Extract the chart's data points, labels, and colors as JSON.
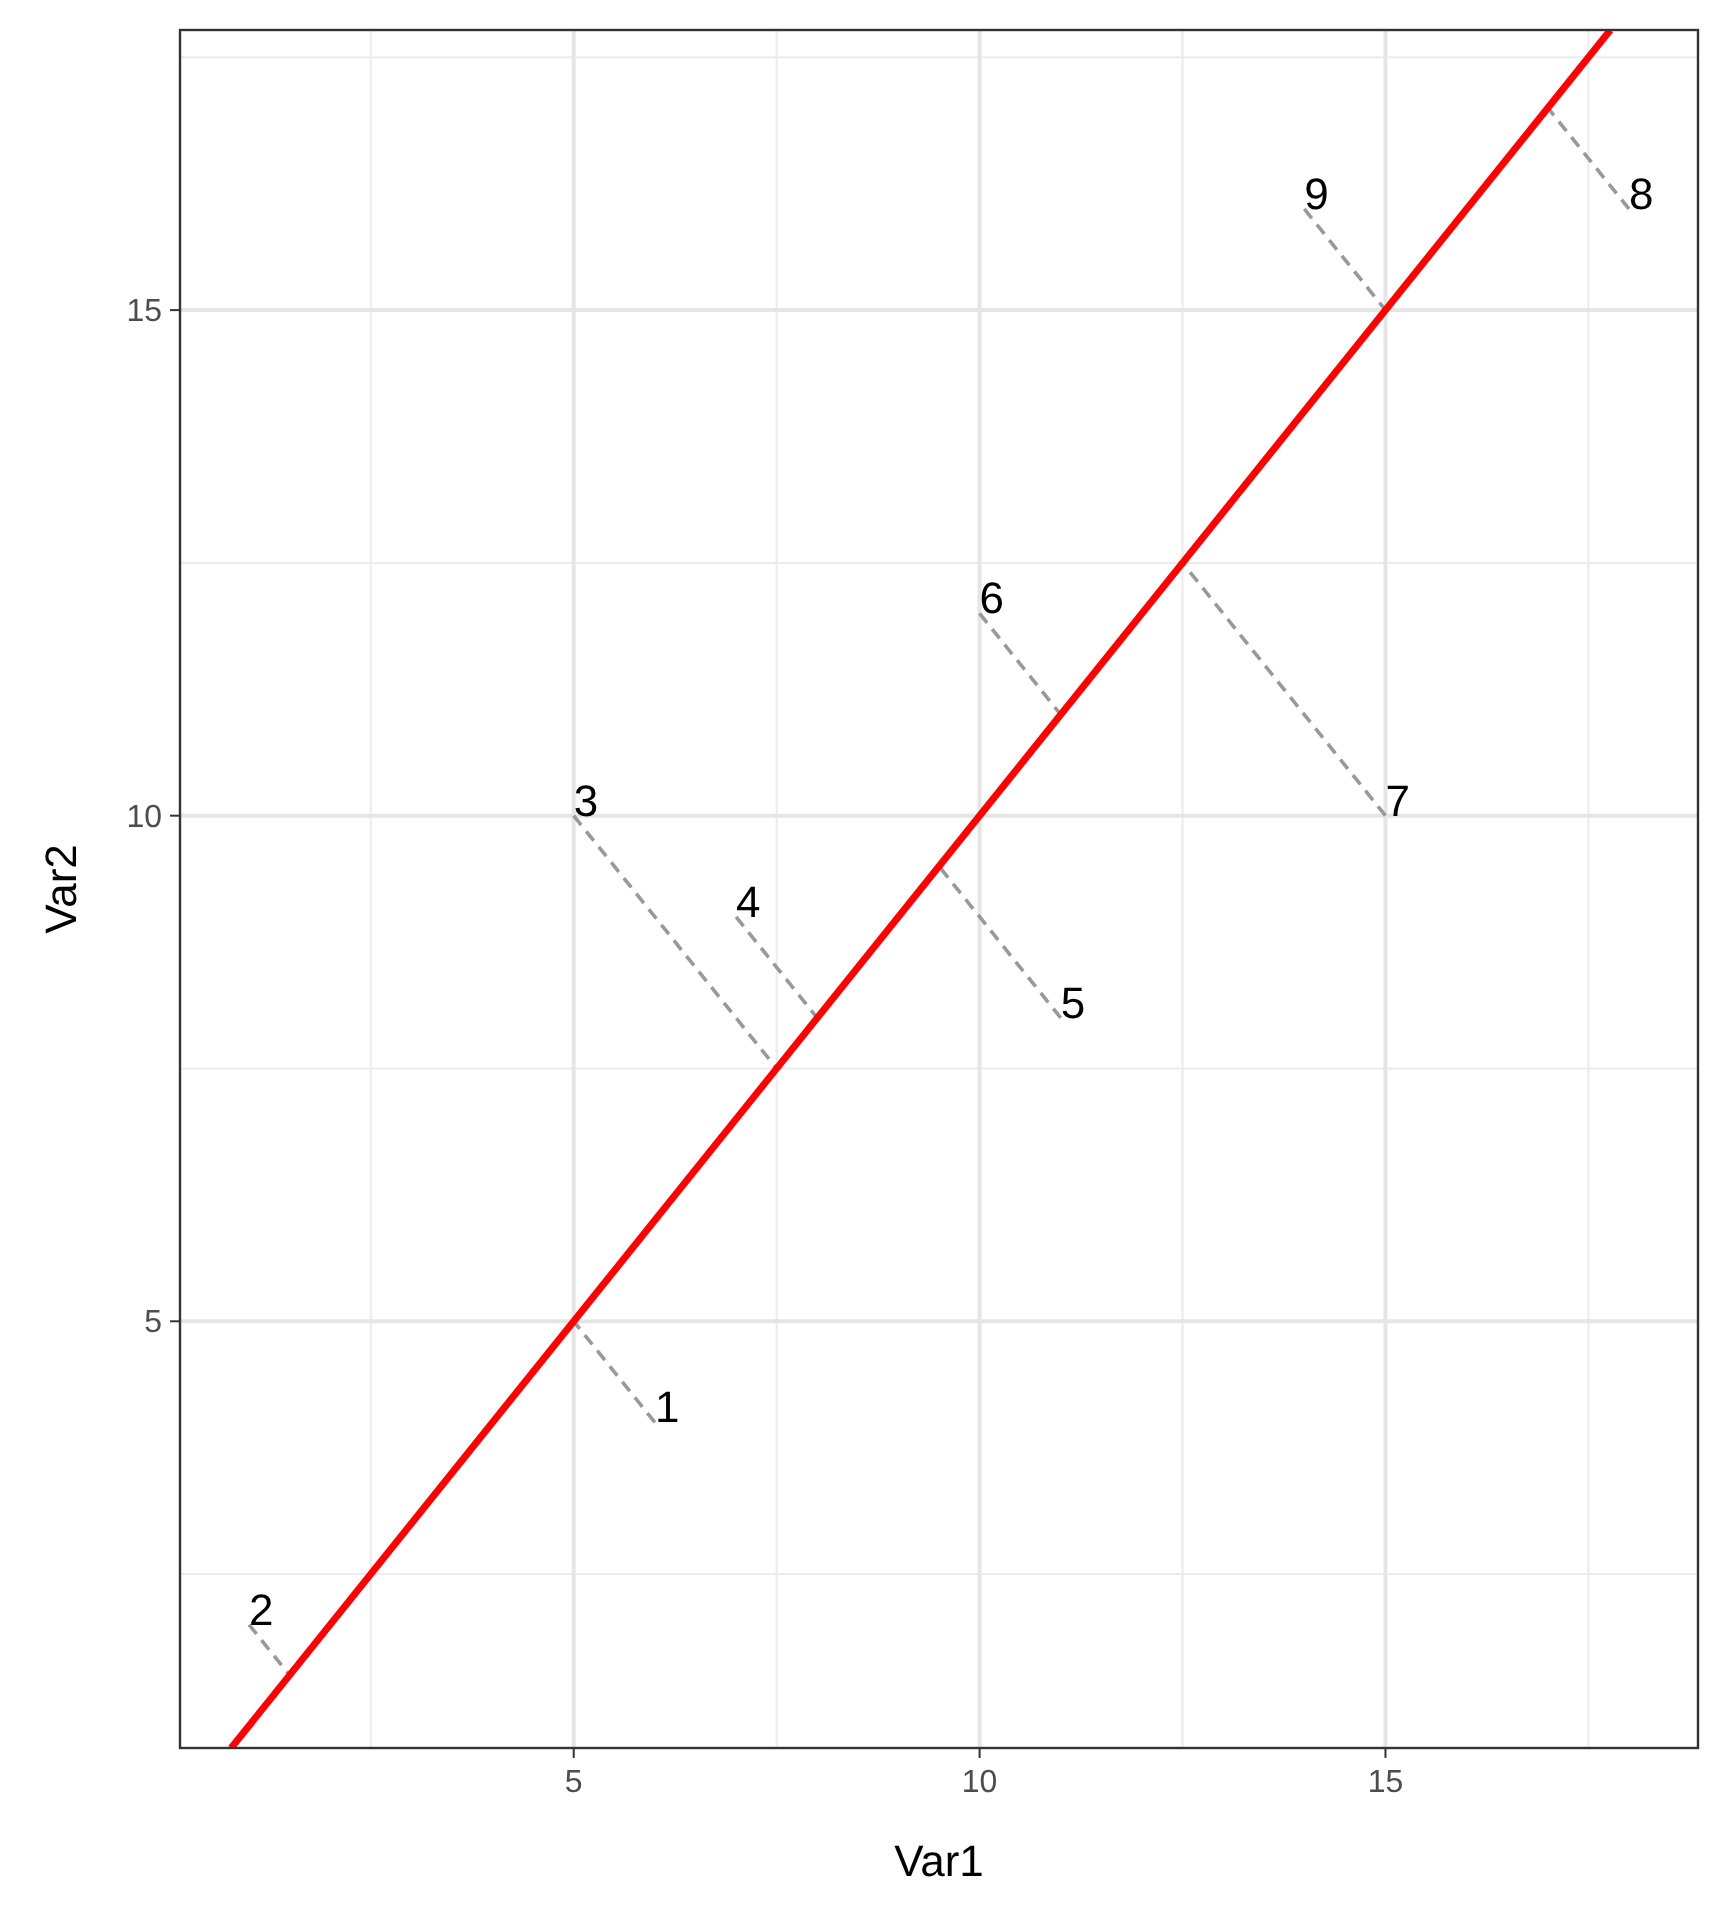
{
  "chart_data": {
    "type": "line",
    "xlabel": "Var1",
    "ylabel": "Var2",
    "xlim": [
      0.15,
      18.85
    ],
    "ylim": [
      0.78,
      17.77
    ],
    "xticks": [
      5,
      10,
      15
    ],
    "yticks": [
      5,
      10,
      15
    ],
    "grid": true,
    "series": [
      {
        "type": "line",
        "color": "#999999",
        "line_style": "dashed",
        "x": [
          6,
          5,
          null,
          1,
          1.5,
          null,
          5,
          7.5,
          null,
          7,
          8,
          null,
          11,
          9.5,
          null,
          10,
          11,
          null,
          15,
          12.5,
          null,
          18,
          17,
          null,
          14,
          15
        ],
        "values": [
          4,
          5,
          null,
          2,
          1.5,
          null,
          10,
          7.5,
          null,
          9,
          8,
          null,
          8,
          9.5,
          null,
          12,
          11,
          null,
          10,
          12.5,
          null,
          16,
          17,
          null,
          16,
          15
        ]
      },
      {
        "color": "#ff0000",
        "line_style": "solid",
        "x": [
          0.78,
          17.77
        ],
        "values": [
          0.78,
          17.77
        ]
      }
    ],
    "annotations": [
      {
        "text": "1",
        "x": 6,
        "y": 4
      },
      {
        "text": "2",
        "x": 1,
        "y": 2
      },
      {
        "text": "3",
        "x": 5,
        "y": 10
      },
      {
        "text": "4",
        "x": 7,
        "y": 9
      },
      {
        "text": "5",
        "x": 11,
        "y": 8
      },
      {
        "text": "6",
        "x": 10,
        "y": 12
      },
      {
        "text": "7",
        "x": 15,
        "y": 10
      },
      {
        "text": "8",
        "x": 18,
        "y": 16
      },
      {
        "text": "9",
        "x": 14,
        "y": 16
      }
    ]
  }
}
